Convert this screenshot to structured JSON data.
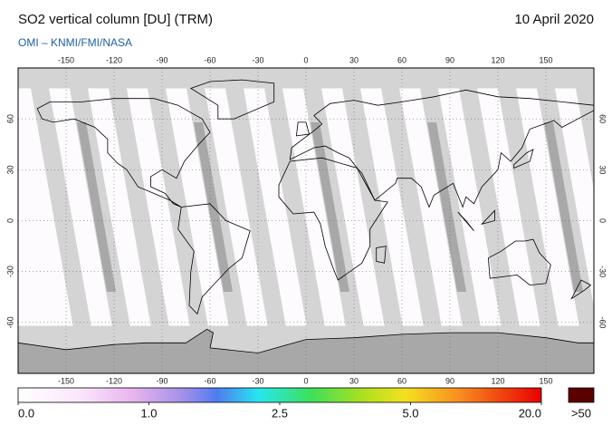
{
  "header": {
    "title": "SO2 vertical column [DU] (TRM)",
    "date": "10 April 2020",
    "subtitle": "OMI  –  KNMI/FMI/NASA"
  },
  "map": {
    "xlim": [
      -180,
      180
    ],
    "ylim": [
      -90,
      90
    ],
    "xticks": [
      -150,
      -120,
      -90,
      -60,
      -30,
      0,
      30,
      60,
      90,
      120,
      150
    ],
    "yticks": [
      -60,
      -30,
      0,
      30,
      60
    ]
  },
  "colorbar": {
    "ticks": [
      {
        "value": 0,
        "label": "0.0"
      },
      {
        "value": 1,
        "label": "1.0"
      },
      2.5,
      {
        "value": 5,
        "label": "5.0"
      },
      {
        "value": 20,
        "label": "20.0"
      }
    ],
    "overflow_label": ">50"
  }
}
